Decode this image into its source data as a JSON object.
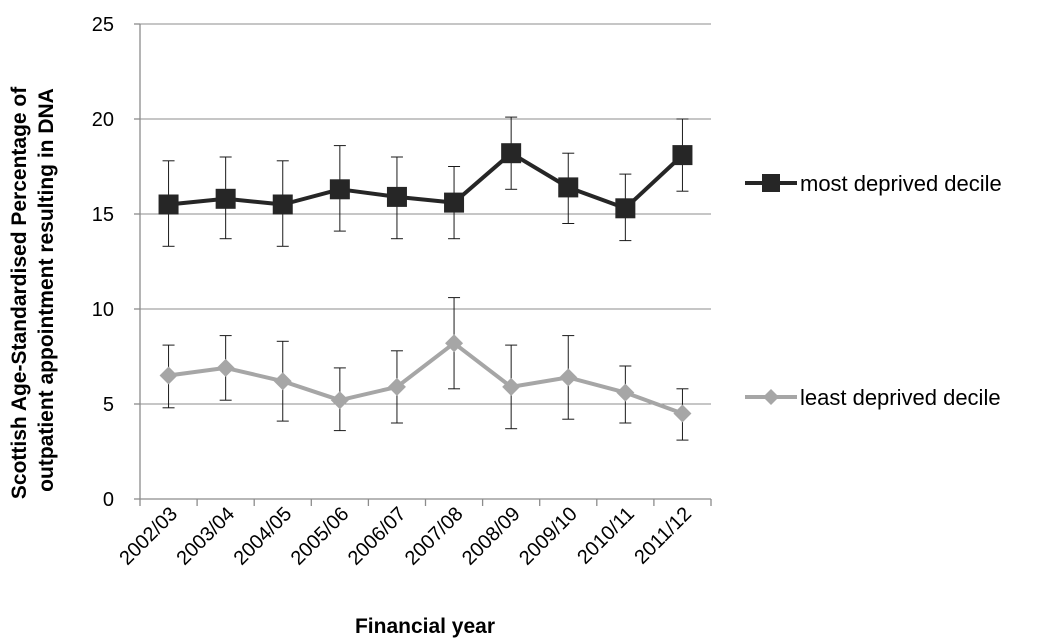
{
  "chart_data": {
    "type": "line",
    "title": "",
    "xlabel": "Financial year",
    "ylabel_lines": [
      "Scottish Age-Standardised Percentage of",
      "outpatient appointment resulting in DNA"
    ],
    "ylim": [
      0,
      25
    ],
    "yticks": [
      0,
      5,
      10,
      15,
      20,
      25
    ],
    "grid": "horizontal",
    "legend_position": "right",
    "categories": [
      "2002/03",
      "2003/04",
      "2004/05",
      "2005/06",
      "2006/07",
      "2007/08",
      "2008/09",
      "2009/10",
      "2010/11",
      "2011/12"
    ],
    "series": [
      {
        "name": "most deprived decile",
        "marker": "square",
        "color": "#262626",
        "values": [
          15.5,
          15.8,
          15.5,
          16.3,
          15.9,
          15.6,
          18.2,
          16.4,
          15.3,
          18.1
        ],
        "error_low": [
          13.3,
          13.7,
          13.3,
          14.1,
          13.7,
          13.7,
          16.3,
          14.5,
          13.6,
          16.2
        ],
        "error_high": [
          17.8,
          18.0,
          17.8,
          18.6,
          18.0,
          17.5,
          20.1,
          18.2,
          17.1,
          20.0
        ]
      },
      {
        "name": "least deprived decile",
        "marker": "diamond",
        "color": "#a6a6a6",
        "values": [
          6.5,
          6.9,
          6.2,
          5.2,
          5.9,
          8.2,
          5.9,
          6.4,
          5.6,
          4.5
        ],
        "error_low": [
          4.8,
          5.2,
          4.1,
          3.6,
          4.0,
          5.8,
          3.7,
          4.2,
          4.0,
          3.1
        ],
        "error_high": [
          8.1,
          8.6,
          8.3,
          6.9,
          7.8,
          10.6,
          8.1,
          8.6,
          7.0,
          5.8
        ]
      }
    ]
  }
}
